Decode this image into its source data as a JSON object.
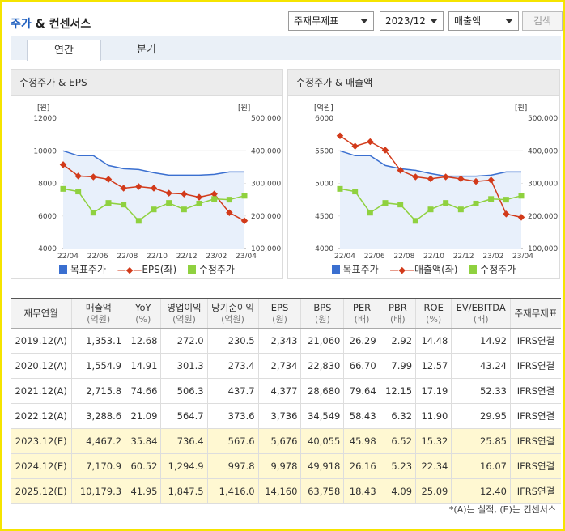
{
  "header": {
    "title_highlight": "주가",
    "title_rest": " & 컨센서스",
    "select_statement": "주재무제표",
    "select_period": "2023/12",
    "select_metric": "매출액",
    "search_label": "검색"
  },
  "tabs": [
    {
      "label": "연간"
    },
    {
      "label": "분기"
    }
  ],
  "colors": {
    "target_price": "#3a6fd0",
    "line_red": "#d23a1a",
    "adj_price": "#8fd13f",
    "estimate_row": "#fff8d2"
  },
  "chart_data": [
    {
      "type": "line",
      "title": "수정주가 & EPS",
      "left_unit": "[원]",
      "right_unit": "[원]",
      "left_ticks": [
        "12000",
        "10000",
        "8000",
        "6000",
        "4000"
      ],
      "right_ticks": [
        "500,000",
        "400,000",
        "300,000",
        "200,000",
        "100,000"
      ],
      "ylim_left": [
        4000,
        12000
      ],
      "ylim_right": [
        100000,
        500000
      ],
      "x_ticks": [
        "22/04",
        "22/06",
        "22/08",
        "22/10",
        "22/12",
        "23/02",
        "23/04"
      ],
      "series": [
        {
          "name": "목표주가",
          "axis": "left",
          "style": "area",
          "values": [
            10000,
            9700,
            9700,
            9100,
            8900,
            8850,
            8650,
            8500,
            8500,
            8500,
            8550,
            8700,
            8700
          ]
        },
        {
          "name": "EPS(좌)",
          "axis": "left",
          "style": "line-diamond",
          "values": [
            9150,
            8450,
            8400,
            8250,
            7700,
            7800,
            7700,
            7400,
            7350,
            7150,
            7350,
            6200,
            5700
          ]
        },
        {
          "name": "수정주가",
          "axis": "right",
          "style": "line-square",
          "values": [
            283000,
            275000,
            210000,
            240000,
            235000,
            185000,
            220000,
            240000,
            220000,
            238000,
            252000,
            250000,
            262000
          ]
        }
      ],
      "legend": [
        "목표주가",
        "EPS(좌)",
        "수정주가"
      ]
    },
    {
      "type": "line",
      "title": "수정주가 & 매출액",
      "left_unit": "[억원]",
      "right_unit": "[원]",
      "left_ticks": [
        "6000",
        "5500",
        "5000",
        "4500",
        "4000"
      ],
      "right_ticks": [
        "500,000",
        "400,000",
        "300,000",
        "200,000",
        "100,000"
      ],
      "ylim_left": [
        4000,
        6000
      ],
      "ylim_right": [
        100000,
        500000
      ],
      "x_ticks": [
        "22/04",
        "22/06",
        "22/08",
        "22/10",
        "22/12",
        "23/02",
        "23/04"
      ],
      "series": [
        {
          "name": "목표주가",
          "axis": "right",
          "style": "area",
          "values": [
            400000,
            385000,
            385000,
            355000,
            345000,
            340000,
            330000,
            322000,
            322000,
            322000,
            325000,
            335000,
            335000
          ]
        },
        {
          "name": "매출액(좌)",
          "axis": "left",
          "style": "line-diamond",
          "values": [
            5730,
            5570,
            5640,
            5510,
            5200,
            5100,
            5070,
            5100,
            5070,
            5030,
            5050,
            4530,
            4480
          ]
        },
        {
          "name": "수정주가",
          "axis": "right",
          "style": "line-square",
          "values": [
            283000,
            275000,
            210000,
            240000,
            235000,
            185000,
            220000,
            240000,
            220000,
            238000,
            252000,
            250000,
            262000
          ]
        }
      ],
      "legend": [
        "목표주가",
        "매출액(좌)",
        "수정주가"
      ]
    }
  ],
  "table": {
    "columns": [
      {
        "label": "재무연월",
        "unit": ""
      },
      {
        "label": "매출액",
        "unit": "(억원)"
      },
      {
        "label": "YoY",
        "unit": "(%)"
      },
      {
        "label": "영업이익",
        "unit": "(억원)"
      },
      {
        "label": "당기순이익",
        "unit": "(억원)"
      },
      {
        "label": "EPS",
        "unit": "(원)"
      },
      {
        "label": "BPS",
        "unit": "(원)"
      },
      {
        "label": "PER",
        "unit": "(배)"
      },
      {
        "label": "PBR",
        "unit": "(배)"
      },
      {
        "label": "ROE",
        "unit": "(%)"
      },
      {
        "label": "EV/EBITDA",
        "unit": "(배)"
      },
      {
        "label": "주재무제표",
        "unit": ""
      }
    ],
    "rows": [
      {
        "estimate": false,
        "cells": [
          "2019.12(A)",
          "1,353.1",
          "12.68",
          "272.0",
          "230.5",
          "2,343",
          "21,060",
          "26.29",
          "2.92",
          "14.48",
          "14.92",
          "IFRS연결"
        ]
      },
      {
        "estimate": false,
        "cells": [
          "2020.12(A)",
          "1,554.9",
          "14.91",
          "301.3",
          "273.4",
          "2,734",
          "22,830",
          "66.70",
          "7.99",
          "12.57",
          "43.24",
          "IFRS연결"
        ]
      },
      {
        "estimate": false,
        "cells": [
          "2021.12(A)",
          "2,715.8",
          "74.66",
          "506.3",
          "437.7",
          "4,377",
          "28,680",
          "79.64",
          "12.15",
          "17.19",
          "52.33",
          "IFRS연결"
        ]
      },
      {
        "estimate": false,
        "cells": [
          "2022.12(A)",
          "3,288.6",
          "21.09",
          "564.7",
          "373.6",
          "3,736",
          "34,549",
          "58.43",
          "6.32",
          "11.90",
          "29.95",
          "IFRS연결"
        ]
      },
      {
        "estimate": true,
        "cells": [
          "2023.12(E)",
          "4,467.2",
          "35.84",
          "736.4",
          "567.6",
          "5,676",
          "40,055",
          "45.98",
          "6.52",
          "15.32",
          "25.85",
          "IFRS연결"
        ]
      },
      {
        "estimate": true,
        "cells": [
          "2024.12(E)",
          "7,170.9",
          "60.52",
          "1,294.9",
          "997.8",
          "9,978",
          "49,918",
          "26.16",
          "5.23",
          "22.34",
          "16.07",
          "IFRS연결"
        ]
      },
      {
        "estimate": true,
        "cells": [
          "2025.12(E)",
          "10,179.3",
          "41.95",
          "1,847.5",
          "1,416.0",
          "14,160",
          "63,758",
          "18.43",
          "4.09",
          "25.09",
          "12.40",
          "IFRS연결"
        ]
      }
    ]
  },
  "footnote": "*(A)는 실적, (E)는 컨센서스"
}
